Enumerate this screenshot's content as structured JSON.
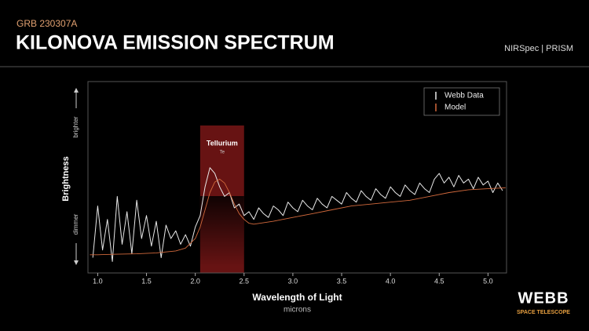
{
  "chart_data": {
    "type": "line",
    "supertitle": "GRB 230307A",
    "title": "KILONOVA EMISSION SPECTRUM",
    "instrument": "NIRSpec | PRISM",
    "xlabel": "Wavelength of Light",
    "xunit": "microns",
    "ylabel": "Brightness",
    "y_high_label": "brighter",
    "y_low_label": "dimmer",
    "annotation": {
      "label": "Tellurium",
      "symbol": "Te",
      "range": [
        2.05,
        2.5
      ],
      "color": "#8a1a1a"
    },
    "xlim": [
      0.9,
      5.19
    ],
    "ylim": [
      0,
      100
    ],
    "xticks": [
      {
        "value": 1,
        "label": "1.0"
      },
      1.5,
      {
        "value": 2,
        "label": "2.0"
      },
      2.5,
      {
        "value": 3,
        "label": "3.0"
      },
      3.5,
      {
        "value": 4,
        "label": "4.0"
      },
      4.5,
      {
        "value": 5,
        "label": "5.0"
      }
    ],
    "legend": "upper right",
    "series": [
      {
        "name": "Webb Data",
        "color": "#e8e8e8",
        "x": [
          0.95,
          1.0,
          1.05,
          1.1,
          1.15,
          1.2,
          1.25,
          1.3,
          1.35,
          1.4,
          1.45,
          1.5,
          1.55,
          1.6,
          1.65,
          1.7,
          1.75,
          1.8,
          1.85,
          1.9,
          1.95,
          2.0,
          2.05,
          2.1,
          2.15,
          2.2,
          2.25,
          2.3,
          2.35,
          2.4,
          2.45,
          2.5,
          2.55,
          2.6,
          2.65,
          2.7,
          2.75,
          2.8,
          2.85,
          2.9,
          2.95,
          3.0,
          3.05,
          3.1,
          3.15,
          3.2,
          3.25,
          3.3,
          3.35,
          3.4,
          3.45,
          3.5,
          3.55,
          3.6,
          3.65,
          3.7,
          3.75,
          3.8,
          3.85,
          3.9,
          3.95,
          4.0,
          4.05,
          4.1,
          4.15,
          4.2,
          4.25,
          4.3,
          4.35,
          4.4,
          4.45,
          4.5,
          4.55,
          4.6,
          4.65,
          4.7,
          4.75,
          4.8,
          4.85,
          4.9,
          4.95,
          5.0,
          5.05,
          5.1,
          5.15
        ],
        "values": [
          8,
          35,
          12,
          28,
          6,
          40,
          15,
          32,
          10,
          38,
          18,
          30,
          14,
          27,
          8,
          25,
          18,
          22,
          15,
          20,
          14,
          24,
          30,
          45,
          55,
          52,
          45,
          40,
          42,
          34,
          36,
          30,
          32,
          28,
          34,
          31,
          29,
          35,
          33,
          30,
          37,
          34,
          32,
          38,
          35,
          33,
          39,
          36,
          34,
          40,
          38,
          36,
          42,
          39,
          37,
          43,
          40,
          38,
          44,
          41,
          39,
          45,
          42,
          40,
          46,
          43,
          41,
          47,
          44,
          42,
          49,
          52,
          47,
          50,
          45,
          51,
          47,
          49,
          44,
          50,
          46,
          48,
          42,
          47,
          43
        ]
      },
      {
        "name": "Model",
        "color": "#d2693c",
        "x": [
          0.92,
          1.0,
          1.2,
          1.4,
          1.6,
          1.8,
          1.9,
          2.0,
          2.05,
          2.1,
          2.15,
          2.2,
          2.25,
          2.3,
          2.35,
          2.4,
          2.45,
          2.5,
          2.55,
          2.6,
          2.8,
          3.0,
          3.2,
          3.4,
          3.6,
          3.8,
          4.0,
          4.2,
          4.4,
          4.6,
          4.8,
          5.0,
          5.18
        ],
        "values": [
          9.5,
          9.5,
          9.8,
          10,
          10.5,
          11.5,
          13,
          18,
          24,
          33,
          42,
          47.5,
          49,
          47,
          42,
          36,
          31,
          28,
          26,
          25.5,
          27,
          29,
          31,
          33,
          35,
          36,
          37,
          38,
          40,
          42,
          43.5,
          44,
          44.5
        ]
      }
    ]
  },
  "logo": {
    "name": "WEBB",
    "subtitle": "SPACE TELESCOPE"
  }
}
